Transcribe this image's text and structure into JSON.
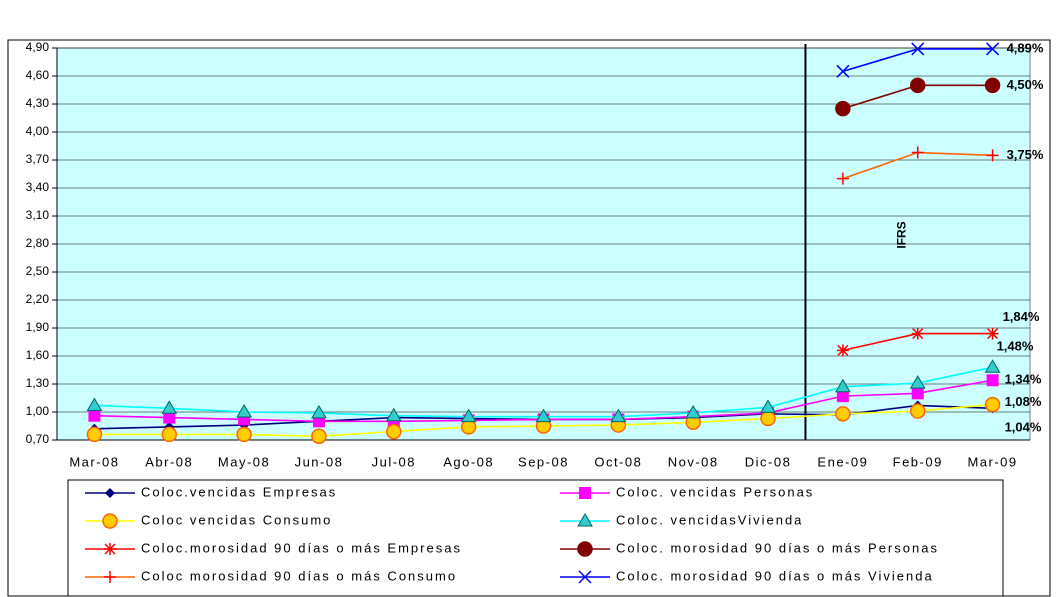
{
  "chart_data": {
    "type": "line",
    "categories": [
      "Mar-08",
      "Abr-08",
      "May-08",
      "Jun-08",
      "Jul-08",
      "Ago-08",
      "Sep-08",
      "Oct-08",
      "Nov-08",
      "Dic-08",
      "Ene-09",
      "Feb-09",
      "Mar-09"
    ],
    "ylim": [
      0.7,
      4.9
    ],
    "yticks": [
      {
        "value": 0.7,
        "label": "0,70"
      },
      {
        "value": 1.0,
        "label": "1,00"
      },
      {
        "value": 1.3,
        "label": "1,30"
      },
      {
        "value": 1.6,
        "label": "1,60"
      },
      {
        "value": 1.9,
        "label": "1,90"
      },
      {
        "value": 2.2,
        "label": "2,20"
      },
      {
        "value": 2.5,
        "label": "2,50"
      },
      {
        "value": 2.8,
        "label": "2,80"
      },
      {
        "value": 3.1,
        "label": "3,10"
      },
      {
        "value": 3.4,
        "label": "3,40"
      },
      {
        "value": 3.7,
        "label": "3,70"
      },
      {
        "value": 4.0,
        "label": "4,00"
      },
      {
        "value": 4.3,
        "label": "4,30"
      },
      {
        "value": 4.6,
        "label": "4,60"
      },
      {
        "value": 4.9,
        "label": "4,90"
      }
    ],
    "grid": true,
    "background": "#ccffff",
    "annotation": "IFRS",
    "series": [
      {
        "name": "Coloc.vencidas Empresas",
        "color": "#000080",
        "marker": "diamond",
        "marker_color": "#000080",
        "values": [
          0.82,
          0.84,
          0.86,
          0.9,
          0.94,
          0.93,
          0.92,
          0.92,
          0.94,
          0.98,
          0.97,
          1.07,
          1.04
        ],
        "value_labels": [
          null,
          null,
          null,
          null,
          null,
          null,
          null,
          null,
          null,
          null,
          null,
          null,
          "1,04%"
        ]
      },
      {
        "name": "Coloc. vencidas Personas",
        "color": "#ff00ff",
        "marker": "square",
        "marker_color": "#ff00ff",
        "values": [
          0.96,
          0.94,
          0.92,
          0.9,
          0.9,
          0.91,
          0.92,
          0.92,
          0.95,
          0.99,
          1.17,
          1.2,
          1.34
        ],
        "value_labels": [
          null,
          null,
          null,
          null,
          null,
          null,
          null,
          null,
          null,
          null,
          null,
          null,
          "1,34%"
        ]
      },
      {
        "name": "Coloc vencidas Consumo",
        "color": "#ffff00",
        "marker": "circle",
        "marker_color": "#ffcc00",
        "values": [
          0.76,
          0.76,
          0.76,
          0.74,
          0.79,
          0.84,
          0.85,
          0.86,
          0.89,
          0.93,
          0.98,
          1.01,
          1.08
        ],
        "value_labels": [
          null,
          null,
          null,
          null,
          null,
          null,
          null,
          null,
          null,
          null,
          null,
          null,
          "1,08%"
        ]
      },
      {
        "name": "Coloc. vencidasVivienda",
        "color": "#00ffff",
        "marker": "triangle",
        "marker_color": "#33cccc",
        "values": [
          1.07,
          1.04,
          1.0,
          0.99,
          0.96,
          0.95,
          0.95,
          0.95,
          0.99,
          1.05,
          1.27,
          1.31,
          1.48
        ],
        "value_labels": [
          null,
          null,
          null,
          null,
          null,
          null,
          null,
          null,
          null,
          null,
          null,
          null,
          "1,48%"
        ]
      },
      {
        "name": "Coloc.morosidad 90 días o más Empresas",
        "color": "#ff0000",
        "marker": "star",
        "marker_color": "#ff0000",
        "values": [
          null,
          null,
          null,
          null,
          null,
          null,
          null,
          null,
          null,
          null,
          1.66,
          1.84,
          1.84
        ],
        "value_labels": [
          null,
          null,
          null,
          null,
          null,
          null,
          null,
          null,
          null,
          null,
          null,
          null,
          "1,84%"
        ]
      },
      {
        "name": "Coloc. morosidad 90 días o más Personas",
        "color": "#800000",
        "marker": "circle",
        "marker_color": "#800000",
        "values": [
          null,
          null,
          null,
          null,
          null,
          null,
          null,
          null,
          null,
          null,
          4.25,
          4.5,
          4.5
        ],
        "value_labels": [
          null,
          null,
          null,
          null,
          null,
          null,
          null,
          null,
          null,
          null,
          null,
          null,
          "4,50%"
        ]
      },
      {
        "name": "Coloc morosidad 90 días o más Consumo",
        "color": "#ff6600",
        "marker": "plus",
        "marker_color": "#ff0000",
        "values": [
          null,
          null,
          null,
          null,
          null,
          null,
          null,
          null,
          null,
          null,
          3.5,
          3.78,
          3.75
        ],
        "value_labels": [
          null,
          null,
          null,
          null,
          null,
          null,
          null,
          null,
          null,
          null,
          null,
          null,
          "3,75%"
        ]
      },
      {
        "name": "Coloc. morosidad 90 días o más Vivienda",
        "color": "#0000ff",
        "marker": "x",
        "marker_color": "#0000ff",
        "values": [
          null,
          null,
          null,
          null,
          null,
          null,
          null,
          null,
          null,
          null,
          4.65,
          4.89,
          4.89
        ],
        "value_labels": [
          null,
          null,
          null,
          null,
          null,
          null,
          null,
          null,
          null,
          null,
          null,
          null,
          "4,89%"
        ]
      }
    ]
  }
}
